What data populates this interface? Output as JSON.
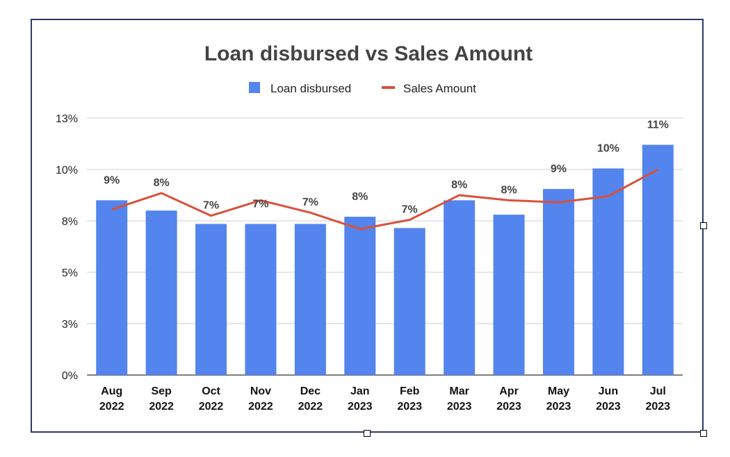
{
  "chart_data": {
    "type": "bar",
    "title": "Loan disbursed vs Sales Amount",
    "categories": [
      [
        "Aug",
        "2022"
      ],
      [
        "Sep",
        "2022"
      ],
      [
        "Oct",
        "2022"
      ],
      [
        "Nov",
        "2022"
      ],
      [
        "Dec",
        "2022"
      ],
      [
        "Jan",
        "2023"
      ],
      [
        "Feb",
        "2023"
      ],
      [
        "Mar",
        "2023"
      ],
      [
        "Apr",
        "2023"
      ],
      [
        "May",
        "2023"
      ],
      [
        "Jun",
        "2023"
      ],
      [
        "Jul",
        "2023"
      ]
    ],
    "y_ticks": [
      "0%",
      "3%",
      "5%",
      "8%",
      "10%",
      "13%"
    ],
    "ylim": [
      0,
      12.5
    ],
    "grid": true,
    "legend_position": "top",
    "series": [
      {
        "name": "Loan disbursed",
        "type": "bar",
        "color": "#5484ed",
        "values": [
          8.5,
          8.0,
          7.35,
          7.35,
          7.35,
          7.7,
          7.15,
          8.5,
          7.8,
          9.05,
          10.05,
          11.2
        ],
        "labels": [
          "9%",
          "8%",
          "7%",
          "7%",
          "7%",
          "8%",
          "7%",
          "8%",
          "8%",
          "9%",
          "10%",
          "11%"
        ]
      },
      {
        "name": "Sales Amount",
        "type": "line",
        "color": "#d9513a",
        "values": [
          8.05,
          8.85,
          7.75,
          8.5,
          7.9,
          7.1,
          7.55,
          8.75,
          8.5,
          8.4,
          8.7,
          10.0
        ]
      }
    ]
  }
}
